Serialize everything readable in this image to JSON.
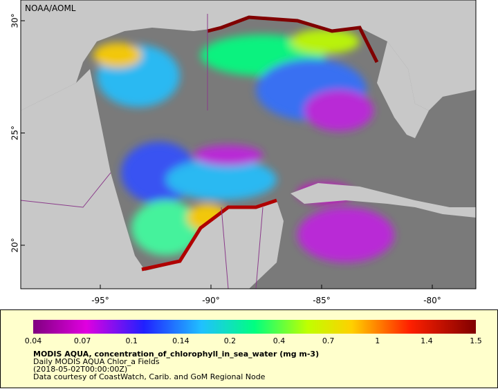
{
  "header": {
    "credit": "NOAA/AOML"
  },
  "map": {
    "lat_labels": [
      "30°",
      "25°",
      "20°"
    ],
    "lon_labels": [
      "-95°",
      "-90°",
      "-85°",
      "-80°"
    ]
  },
  "legend": {
    "ticks": [
      "0.04",
      "0.07",
      "0.1",
      "0.14",
      "0.2",
      "0.4",
      "0.7",
      "1",
      "1.4",
      "1.5"
    ],
    "title": "MODIS AQUA, concentration_of_chlorophyll_in_sea_water (mg m-3)",
    "lines": [
      "Daily MODIS AQUA Chlor_a Fields",
      "(2018-05-02T00:00:00Z)",
      "Data courtesy of CoastWatch, Carib. and GoM Regional Node"
    ]
  }
}
